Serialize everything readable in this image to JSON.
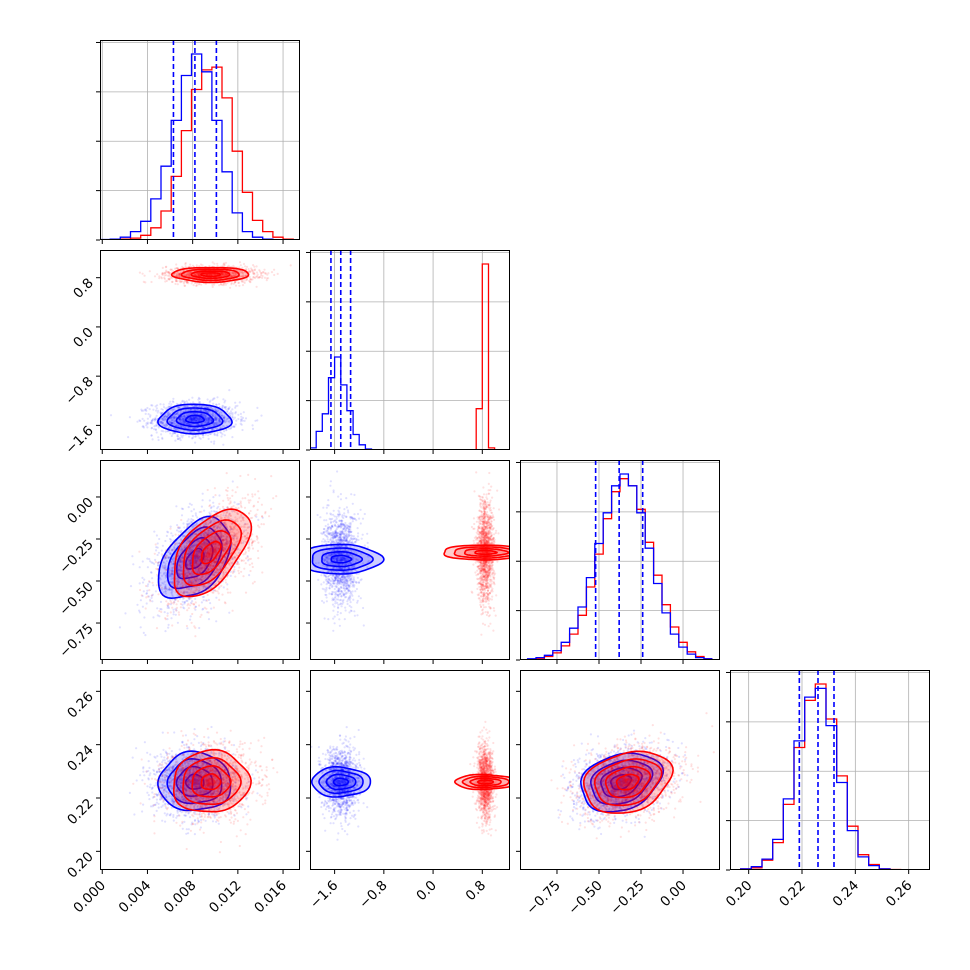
{
  "chart_data": {
    "type": "scatter",
    "variant": "corner-plot",
    "grid": true,
    "colors": {
      "series_a": "#0000ff",
      "series_b": "#ff0000",
      "median_lines": "#0000ff"
    },
    "series": [
      {
        "color": "#0000ff",
        "means": [
          0.0082,
          -1.5,
          -0.37,
          0.226
        ],
        "sds": [
          0.0016,
          0.12,
          0.12,
          0.0055
        ]
      },
      {
        "color": "#ff0000",
        "means": [
          0.0096,
          0.85,
          -0.33,
          0.226
        ],
        "sds": [
          0.0017,
          0.06,
          0.13,
          0.0058
        ]
      }
    ],
    "axes": [
      {
        "range": [
          -0.0002,
          0.0175
        ],
        "ticks": [
          0.0,
          0.004,
          0.008,
          0.012,
          0.016
        ],
        "tick_labels": [
          "0.000",
          "0.004",
          "0.008",
          "0.012",
          "0.016"
        ]
      },
      {
        "range": [
          -2.0,
          1.25
        ],
        "ticks": [
          -1.6,
          -0.8,
          0.0,
          0.8
        ],
        "tick_labels": [
          "−1.6",
          "−0.8",
          "0.0",
          "0.8"
        ]
      },
      {
        "range": [
          -0.97,
          0.22
        ],
        "ticks": [
          -0.75,
          -0.5,
          -0.25,
          0.0
        ],
        "tick_labels": [
          "−0.75",
          "−0.50",
          "−0.25",
          "0.00"
        ]
      },
      {
        "range": [
          0.193,
          0.268
        ],
        "ticks": [
          0.2,
          0.22,
          0.24,
          0.26
        ],
        "tick_labels": [
          "0.20",
          "0.22",
          "0.24",
          "0.26"
        ]
      }
    ],
    "quantile_lines": [
      [
        0.0063,
        0.0082,
        0.0101
      ],
      [
        -1.66,
        -1.5,
        -1.34
      ],
      [
        -0.52,
        -0.38,
        -0.24
      ],
      [
        0.219,
        0.226,
        0.232
      ]
    ],
    "histograms": [
      {
        "bins": [
          -0.0002,
          0.0007,
          0.0016,
          0.0025,
          0.0034,
          0.0043,
          0.0052,
          0.0061,
          0.007,
          0.0079,
          0.0088,
          0.0097,
          0.0106,
          0.0115,
          0.0124,
          0.0133,
          0.0142,
          0.0151,
          0.016,
          0.0169,
          0.0178
        ],
        "series_a": [
          0.5,
          1,
          3,
          9,
          20,
          44,
          79,
          128,
          176,
          199,
          180,
          128,
          73,
          29,
          9,
          3,
          1,
          0,
          0,
          0
        ],
        "series_b": [
          0,
          0.5,
          1,
          2,
          5,
          13,
          31,
          68,
          117,
          161,
          182,
          185,
          152,
          95,
          51,
          21,
          9,
          3,
          1,
          0
        ]
      },
      {
        "bins": [
          -2.0,
          -1.9,
          -1.8,
          -1.7,
          -1.6,
          -1.5,
          -1.4,
          -1.3,
          -1.2,
          -1.1,
          -1.0,
          0.5,
          0.6,
          0.7,
          0.8,
          0.9,
          1.0,
          1.1,
          1.2
        ],
        "series_a": [
          2,
          18,
          35,
          70,
          90,
          63,
          38,
          15,
          5,
          1,
          0,
          0,
          0,
          0,
          0,
          0,
          0,
          0
        ],
        "series_b": [
          0,
          0,
          0,
          0,
          0,
          0,
          0,
          0,
          0,
          0,
          0,
          0,
          0,
          40,
          180,
          2,
          0,
          0
        ]
      },
      {
        "bins": [
          -0.975,
          -0.925,
          -0.875,
          -0.825,
          -0.775,
          -0.725,
          -0.675,
          -0.625,
          -0.575,
          -0.525,
          -0.475,
          -0.425,
          -0.375,
          -0.325,
          -0.275,
          -0.225,
          -0.175,
          -0.125,
          -0.075,
          -0.025,
          0.025,
          0.075,
          0.125,
          0.175
        ],
        "series_a": [
          0,
          1,
          2,
          4,
          8,
          15,
          27,
          45,
          70,
          99,
          125,
          148,
          158,
          148,
          125,
          95,
          65,
          40,
          22,
          11,
          5,
          2,
          1
        ],
        "series_b": [
          0,
          0,
          1,
          3,
          6,
          12,
          22,
          38,
          62,
          90,
          120,
          143,
          154,
          148,
          128,
          100,
          72,
          47,
          28,
          15,
          7,
          3,
          1
        ]
      },
      {
        "bins": [
          0.193,
          0.197,
          0.201,
          0.205,
          0.209,
          0.213,
          0.217,
          0.221,
          0.225,
          0.229,
          0.233,
          0.237,
          0.241,
          0.245,
          0.249,
          0.253,
          0.257,
          0.261,
          0.265
        ],
        "series_a": [
          0,
          1,
          3,
          10,
          28,
          65,
          118,
          158,
          166,
          132,
          80,
          36,
          12,
          4,
          1,
          0,
          0,
          0
        ],
        "series_b": [
          0,
          1,
          2,
          9,
          25,
          60,
          112,
          155,
          170,
          138,
          86,
          40,
          14,
          5,
          1,
          0.5,
          0,
          0
        ]
      }
    ],
    "pairs": [
      {
        "x_axis": 0,
        "y_axis": 1,
        "rho_a": 0.0,
        "rho_b": 0.0
      },
      {
        "x_axis": 0,
        "y_axis": 2,
        "rho_a": 0.45,
        "rho_b": 0.55
      },
      {
        "x_axis": 1,
        "y_axis": 2,
        "rho_a": 0.0,
        "rho_b": 0.0
      },
      {
        "x_axis": 0,
        "y_axis": 3,
        "rho_a": 0.0,
        "rho_b": 0.05
      },
      {
        "x_axis": 1,
        "y_axis": 3,
        "rho_a": 0.0,
        "rho_b": 0.0
      },
      {
        "x_axis": 2,
        "y_axis": 3,
        "rho_a": 0.25,
        "rho_b": 0.25
      }
    ]
  }
}
